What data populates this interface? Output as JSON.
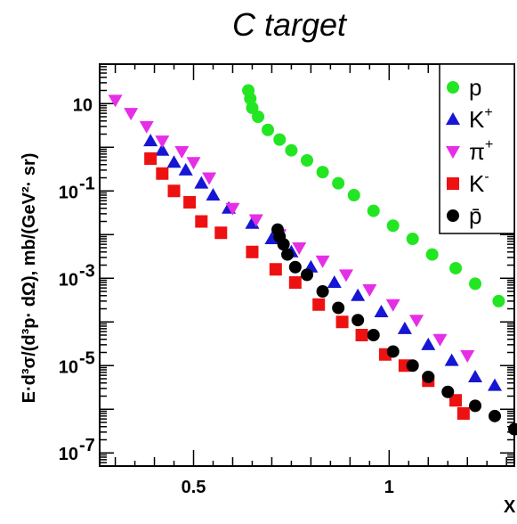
{
  "chart_data": {
    "type": "scatter",
    "title": "C  target",
    "xlabel": "X",
    "ylabel": "E·d³σ/(d³p· dΩ), mb/(GeV²· sr)",
    "xscale": "linear",
    "yscale": "log",
    "xlim": [
      0.26,
      1.32
    ],
    "ylim": [
      5e-08,
      80
    ],
    "x_ticks": [
      {
        "value": 0.5,
        "label": "0.5"
      },
      {
        "value": 1.0,
        "label": "1"
      }
    ],
    "y_ticks": [
      {
        "value": 10,
        "label": "10",
        "exp": ""
      },
      {
        "value": 0.1,
        "label": "10",
        "exp": "-1"
      },
      {
        "value": 0.001,
        "label": "10",
        "exp": "-3"
      },
      {
        "value": 1e-05,
        "label": "10",
        "exp": "-5"
      },
      {
        "value": 1e-07,
        "label": "10",
        "exp": "-7"
      }
    ],
    "grid": false,
    "legend": {
      "placement": "top-right",
      "entries": [
        {
          "label": "p",
          "sup": "",
          "series": "p"
        },
        {
          "label": "K",
          "sup": "+",
          "series": "K+"
        },
        {
          "label": "π",
          "sup": "+",
          "series": "pi+"
        },
        {
          "label": "K",
          "sup": "-",
          "series": "K-"
        },
        {
          "label": "p̄",
          "sup": "",
          "series": "pbar"
        }
      ]
    },
    "series": [
      {
        "id": "p",
        "marker": "circle",
        "color": "#22e622",
        "points": [
          [
            0.64,
            20
          ],
          [
            0.645,
            13
          ],
          [
            0.65,
            8
          ],
          [
            0.665,
            5
          ],
          [
            0.69,
            2.5
          ],
          [
            0.72,
            1.5
          ],
          [
            0.75,
            0.85
          ],
          [
            0.79,
            0.5
          ],
          [
            0.83,
            0.27
          ],
          [
            0.87,
            0.15
          ],
          [
            0.91,
            0.08
          ],
          [
            0.96,
            0.035
          ],
          [
            1.01,
            0.016
          ],
          [
            1.06,
            0.008
          ],
          [
            1.11,
            0.0035
          ],
          [
            1.17,
            0.0017
          ],
          [
            1.22,
            0.00075
          ],
          [
            1.28,
            0.0003
          ]
        ]
      },
      {
        "id": "K+",
        "marker": "triangle-up",
        "color": "#1616d4",
        "points": [
          [
            0.39,
            1.4
          ],
          [
            0.42,
            0.85
          ],
          [
            0.45,
            0.45
          ],
          [
            0.48,
            0.3
          ],
          [
            0.52,
            0.15
          ],
          [
            0.55,
            0.08
          ],
          [
            0.59,
            0.04
          ],
          [
            0.65,
            0.018
          ],
          [
            0.7,
            0.008
          ],
          [
            0.75,
            0.004
          ],
          [
            0.8,
            0.0018
          ],
          [
            0.86,
            0.0008
          ],
          [
            0.92,
            0.0004
          ],
          [
            0.98,
            0.00017
          ],
          [
            1.04,
            7e-05
          ],
          [
            1.1,
            3e-05
          ],
          [
            1.16,
            1.3e-05
          ],
          [
            1.22,
            5.5e-06
          ],
          [
            1.27,
            3.5e-06
          ]
        ]
      },
      {
        "id": "pi+",
        "marker": "triangle-down",
        "color": "#e62ee6",
        "points": [
          [
            0.3,
            12
          ],
          [
            0.34,
            6
          ],
          [
            0.38,
            3
          ],
          [
            0.42,
            1.4
          ],
          [
            0.47,
            0.8
          ],
          [
            0.5,
            0.45
          ],
          [
            0.54,
            0.2
          ],
          [
            0.6,
            0.04
          ],
          [
            0.66,
            0.022
          ],
          [
            0.72,
            0.01
          ],
          [
            0.77,
            0.005
          ],
          [
            0.83,
            0.0025
          ],
          [
            0.89,
            0.0012
          ],
          [
            0.95,
            0.00055
          ],
          [
            1.01,
            0.00025
          ],
          [
            1.07,
            0.00011
          ],
          [
            1.13,
            4e-05
          ],
          [
            1.2,
            1.7e-05
          ]
        ]
      },
      {
        "id": "K-",
        "marker": "square",
        "color": "#ee1111",
        "points": [
          [
            0.39,
            0.55
          ],
          [
            0.42,
            0.25
          ],
          [
            0.45,
            0.1
          ],
          [
            0.49,
            0.055
          ],
          [
            0.52,
            0.02
          ],
          [
            0.57,
            0.011
          ],
          [
            0.65,
            0.004
          ],
          [
            0.71,
            0.0016
          ],
          [
            0.76,
            0.0008
          ],
          [
            0.82,
            0.00025
          ],
          [
            0.88,
            0.0001
          ],
          [
            0.93,
            5e-05
          ],
          [
            0.99,
            1.8e-05
          ],
          [
            1.04,
            1e-05
          ],
          [
            1.1,
            4.5e-06
          ],
          [
            1.17,
            1.6e-06
          ],
          [
            1.19,
            8e-07
          ]
        ]
      },
      {
        "id": "pbar",
        "marker": "circle",
        "color": "#000000",
        "points": [
          [
            0.715,
            0.013
          ],
          [
            0.72,
            0.009
          ],
          [
            0.73,
            0.006
          ],
          [
            0.74,
            0.0035
          ],
          [
            0.76,
            0.0018
          ],
          [
            0.79,
            0.0012
          ],
          [
            0.83,
            0.0005
          ],
          [
            0.87,
            0.00021
          ],
          [
            0.92,
            0.00011
          ],
          [
            0.96,
            5e-05
          ],
          [
            1.01,
            2.1e-05
          ],
          [
            1.06,
            1e-05
          ],
          [
            1.1,
            5.5e-06
          ],
          [
            1.15,
            2.5e-06
          ],
          [
            1.22,
            1.2e-06
          ],
          [
            1.27,
            7e-07
          ],
          [
            1.32,
            3.5e-07
          ]
        ]
      }
    ]
  }
}
